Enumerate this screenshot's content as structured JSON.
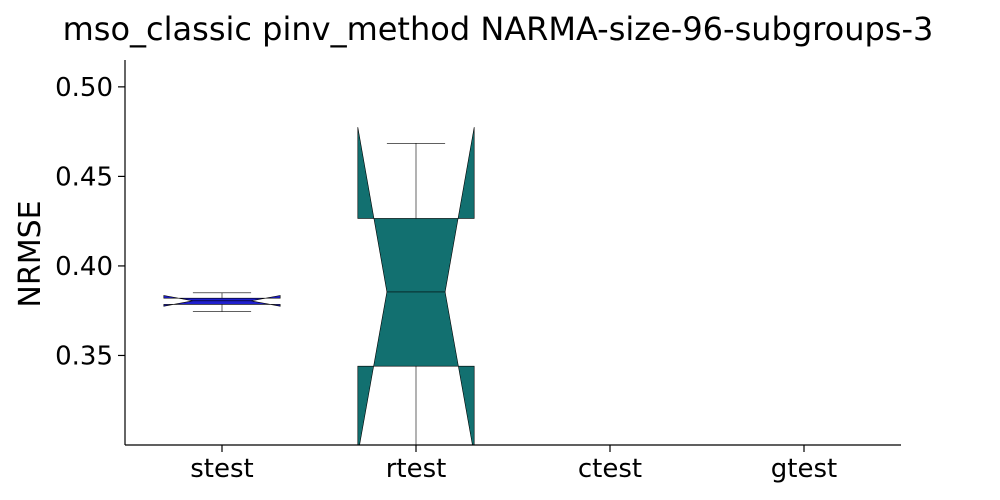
{
  "chart_data": {
    "type": "box",
    "title": "mso_classic pinv_method NARMA-size-96-subgroups-3",
    "xlabel": "",
    "ylabel": "NRMSE",
    "ylim": [
      0.3,
      0.515
    ],
    "yticks": [
      0.35,
      0.4,
      0.45,
      0.5
    ],
    "ytick_labels": [
      "0.35",
      "0.40",
      "0.45",
      "0.50"
    ],
    "categories": [
      "stest",
      "rtest",
      "ctest",
      "gtest"
    ],
    "grid": false,
    "notched": true,
    "boxes": [
      {
        "category": "stest",
        "color": "#1f1fcf",
        "whisker_low": 0.3745,
        "q1": 0.3785,
        "median": 0.3805,
        "q3": 0.382,
        "whisker_high": 0.385,
        "notch_low": 0.3775,
        "notch_high": 0.3835
      },
      {
        "category": "rtest",
        "color": "#127070",
        "whisker_low": 0.29,
        "q1": 0.344,
        "median": 0.3855,
        "q3": 0.4265,
        "whisker_high": 0.4685,
        "notch_low": 0.2945,
        "notch_high": 0.4775
      },
      {
        "category": "ctest",
        "color": null
      },
      {
        "category": "gtest",
        "color": null
      }
    ]
  }
}
